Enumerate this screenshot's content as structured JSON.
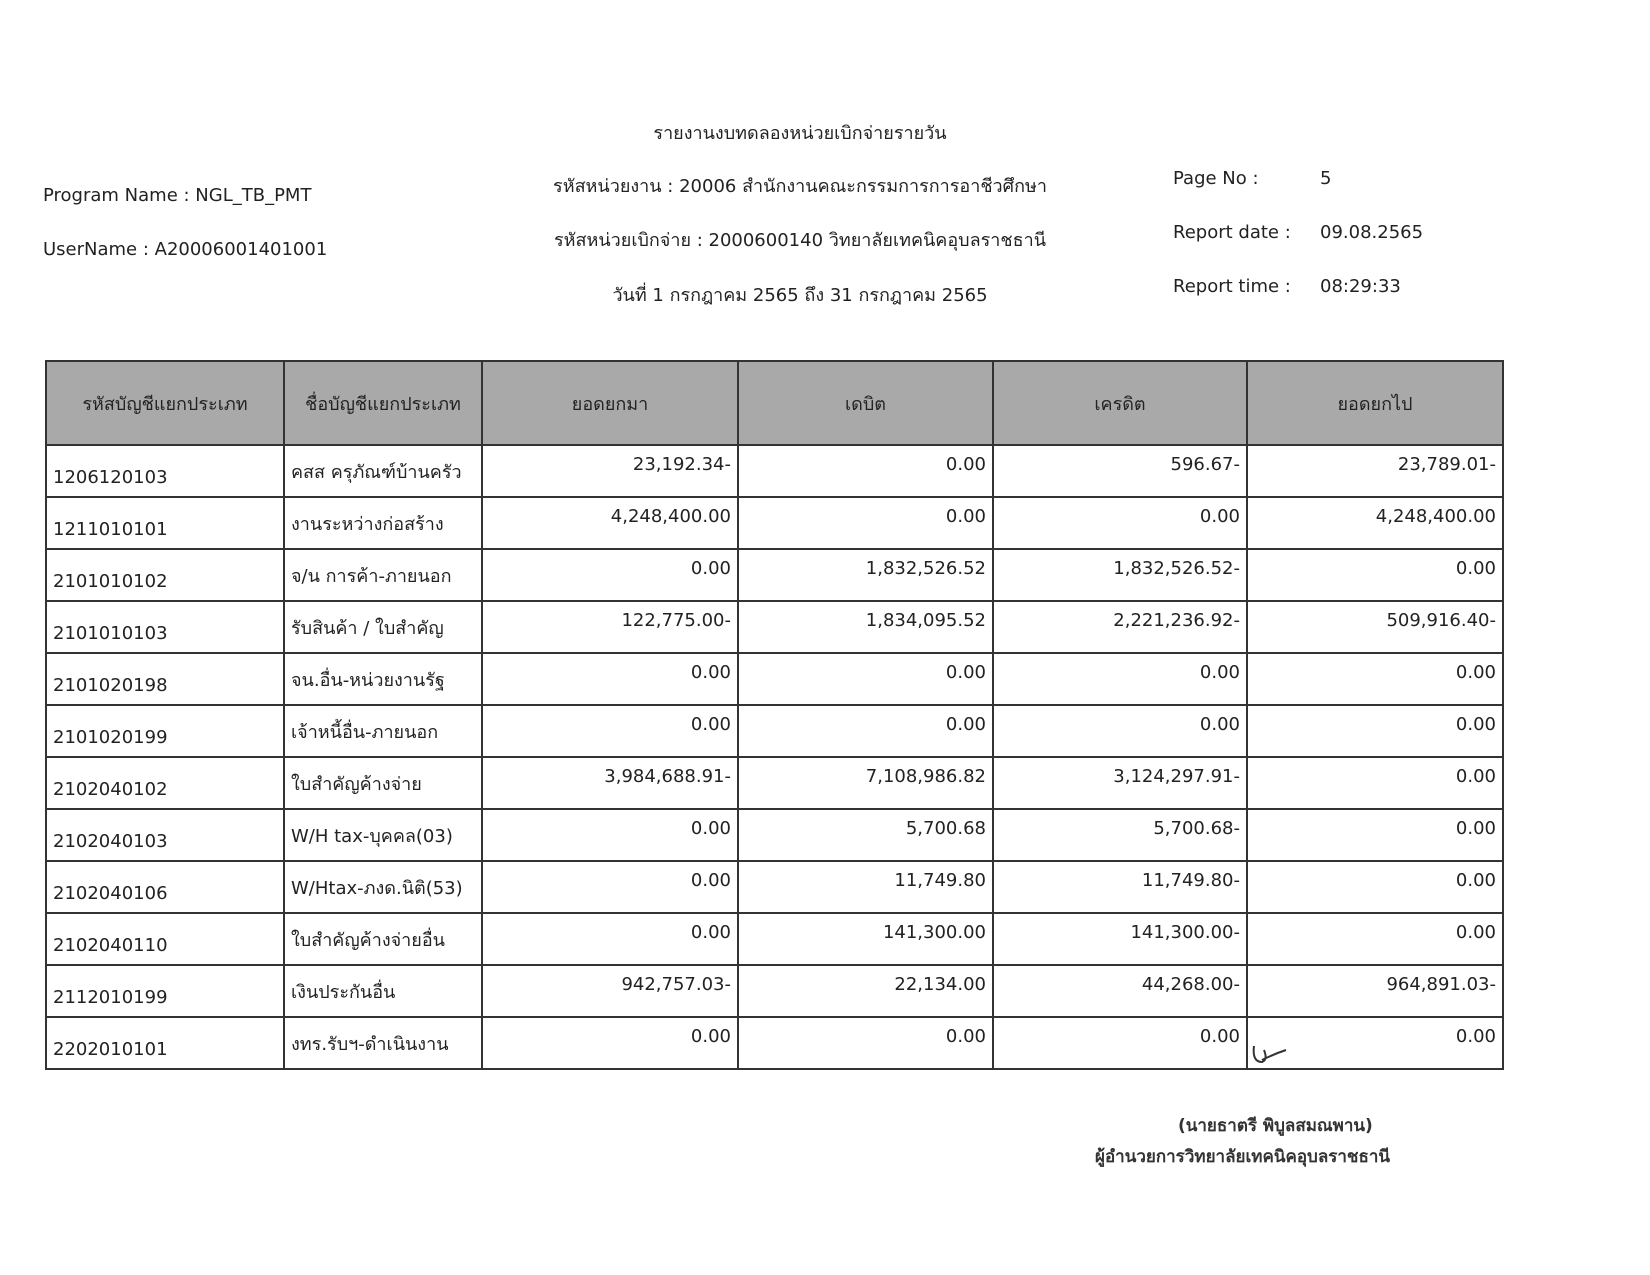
{
  "header": {
    "program_name": "Program Name : NGL_TB_PMT",
    "username": "UserName : A20006001401001",
    "title": "รายงานงบทดลองหน่วยเบิกจ่ายรายวัน",
    "agency": "รหัสหน่วยงาน : 20006 สำนักงานคณะกรรมการการอาชีวศึกษา",
    "disbursing_unit": "รหัสหน่วยเบิกจ่าย : 2000600140 วิทยาลัยเทคนิคอุบลราชธานี",
    "period": "วันที่ 1 กรกฎาคม 2565 ถึง 31 กรกฎาคม 2565",
    "page_label": "Page No :",
    "page_value": "5",
    "date_label": "Report date :",
    "date_value": "09.08.2565",
    "time_label": "Report time :",
    "time_value": "08:29:33"
  },
  "table": {
    "columns": [
      "รหัสบัญชีแยกประเภท",
      "ชื่อบัญชีแยกประเภท",
      "ยอดยกมา",
      "เดบิต",
      "เครดิต",
      "ยอดยกไป"
    ],
    "rows": [
      [
        "1206120103",
        "คสส ครุภัณฑ์บ้านครัว",
        "23,192.34-",
        "0.00",
        "596.67-",
        "23,789.01-"
      ],
      [
        "1211010101",
        "งานระหว่างก่อสร้าง",
        "4,248,400.00",
        "0.00",
        "0.00",
        "4,248,400.00"
      ],
      [
        "2101010102",
        "จ/น การค้า-ภายนอก",
        "0.00",
        "1,832,526.52",
        "1,832,526.52-",
        "0.00"
      ],
      [
        "2101010103",
        "รับสินค้า / ใบสำคัญ",
        "122,775.00-",
        "1,834,095.52",
        "2,221,236.92-",
        "509,916.40-"
      ],
      [
        "2101020198",
        "จน.อื่น-หน่วยงานรัฐ",
        "0.00",
        "0.00",
        "0.00",
        "0.00"
      ],
      [
        "2101020199",
        "เจ้าหนี้อื่น-ภายนอก",
        "0.00",
        "0.00",
        "0.00",
        "0.00"
      ],
      [
        "2102040102",
        "ใบสำคัญค้างจ่าย",
        "3,984,688.91-",
        "7,108,986.82",
        "3,124,297.91-",
        "0.00"
      ],
      [
        "2102040103",
        "W/H tax-บุคคล(03)",
        "0.00",
        "5,700.68",
        "5,700.68-",
        "0.00"
      ],
      [
        "2102040106",
        "W/Htax-ภงด.นิติ(53)",
        "0.00",
        "11,749.80",
        "11,749.80-",
        "0.00"
      ],
      [
        "2102040110",
        "ใบสำคัญค้างจ่ายอื่น",
        "0.00",
        "141,300.00",
        "141,300.00-",
        "0.00"
      ],
      [
        "2112010199",
        "เงินประกันอื่น",
        "942,757.03-",
        "22,134.00",
        "44,268.00-",
        "964,891.03-"
      ],
      [
        "2202010101",
        "งทร.รับฯ-ดำเนินงาน",
        "0.00",
        "0.00",
        "0.00",
        "0.00"
      ]
    ]
  },
  "signature": {
    "name": "(นายธาตรี พิบูลสมณพาน)",
    "position": "ผู้อำนวยการวิทยาลัยเทคนิคอุบลราชธานี"
  }
}
